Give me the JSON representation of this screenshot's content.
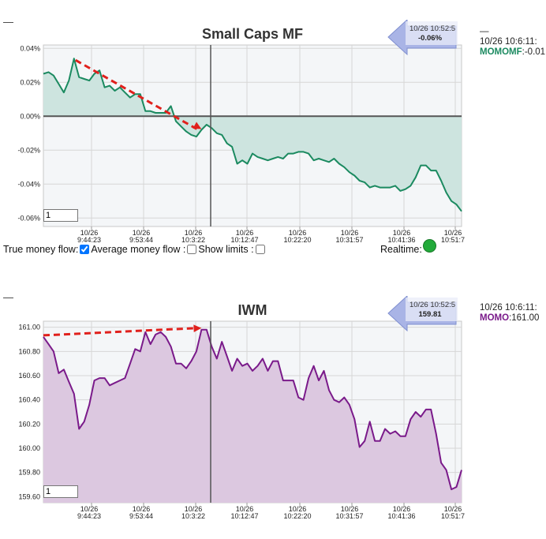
{
  "top_dash": "—",
  "bottom_dash": "—",
  "xtick_labels": [
    [
      "10/26",
      "9:44:23"
    ],
    [
      "10/26",
      "9:53:44"
    ],
    [
      "10/26",
      "10:3:22"
    ],
    [
      "10/26",
      "10:12:47"
    ],
    [
      "10/26",
      "10:22:20"
    ],
    [
      "10/26",
      "10:31:57"
    ],
    [
      "10/26",
      "10:41:36"
    ],
    [
      "10/26",
      "10:51:7"
    ]
  ],
  "controls": {
    "true_money_flow_label": "True money flow:",
    "true_money_flow_checked": true,
    "average_money_flow_label": "Average money flow :",
    "show_limits_label": "Show limits :",
    "realtime_label": "Realtime:",
    "realtime_color": "#22aa3a"
  },
  "colors": {
    "mf_line": "#1b8a60",
    "mf_fill": "#cde4df",
    "iwm_line": "#7a1a8a",
    "iwm_fill": "#dcc8e0",
    "annotation_arrow": "#e0201c",
    "tooltip_arrow": "#a9b4e6"
  },
  "chart_data": [
    {
      "type": "area",
      "title": "Small Caps MF",
      "unit": "%",
      "ylim": [
        -0.065,
        0.042
      ],
      "yticks": [
        0.04,
        0.02,
        0.0,
        -0.02,
        -0.04,
        -0.06
      ],
      "ytick_labels": [
        "0.04%",
        "0.02%",
        "0.00%",
        "-0.02%",
        "-0.04%",
        "-0.06%"
      ],
      "zero_line": true,
      "grid": true,
      "cursor_time": "10/26 10:3:22",
      "zoom_value": "1",
      "tooltip": {
        "time": "10/26 10:52:5",
        "value": "-0.06%"
      },
      "side_info": {
        "time": "10/26 10:6:11:",
        "label": "MOMOMF",
        "value": ":-0.01"
      },
      "series": [
        {
          "values": [
            0.025,
            0.026,
            0.024,
            0.019,
            0.014,
            0.021,
            0.034,
            0.023,
            0.022,
            0.021,
            0.025,
            0.027,
            0.017,
            0.018,
            0.015,
            0.017,
            0.014,
            0.011,
            0.013,
            0.013,
            0.003,
            0.003,
            0.002,
            0.002,
            0.002,
            0.006,
            -0.003,
            -0.006,
            -0.009,
            -0.011,
            -0.012,
            -0.008,
            -0.005,
            -0.007,
            -0.01,
            -0.011,
            -0.016,
            -0.018,
            -0.028,
            -0.026,
            -0.028,
            -0.022,
            -0.024,
            -0.025,
            -0.026,
            -0.025,
            -0.024,
            -0.025,
            -0.022,
            -0.022,
            -0.021,
            -0.021,
            -0.022,
            -0.026,
            -0.025,
            -0.026,
            -0.027,
            -0.025,
            -0.028,
            -0.03,
            -0.033,
            -0.035,
            -0.038,
            -0.039,
            -0.042,
            -0.041,
            -0.042,
            -0.042,
            -0.042,
            -0.041,
            -0.044,
            -0.043,
            -0.041,
            -0.036,
            -0.029,
            -0.029,
            -0.032,
            -0.032,
            -0.038,
            -0.045,
            -0.05,
            -0.052,
            -0.056
          ]
        }
      ],
      "annotation_arrow": {
        "from_index": 6,
        "to_index": 31,
        "style": "dashed-red"
      }
    },
    {
      "type": "area",
      "title": "IWM",
      "ylim": [
        159.55,
        161.05
      ],
      "yticks": [
        161.0,
        160.8,
        160.6,
        160.4,
        160.2,
        160.0,
        159.8,
        159.6
      ],
      "ytick_labels": [
        "161.00",
        "160.80",
        "160.60",
        "160.40",
        "160.20",
        "160.00",
        "159.80",
        "159.60"
      ],
      "grid": true,
      "cursor_time": "10/26 10:3:22",
      "zoom_value": "1",
      "tooltip": {
        "time": "10/26 10:52:5",
        "value": "159.81"
      },
      "side_info": {
        "time": "10/26 10:6:11:",
        "label": "MOMO",
        "value": ":161.00"
      },
      "series": [
        {
          "values": [
            160.92,
            160.86,
            160.8,
            160.62,
            160.65,
            160.55,
            160.45,
            160.16,
            160.22,
            160.36,
            160.56,
            160.58,
            160.58,
            160.52,
            160.54,
            160.56,
            160.58,
            160.7,
            160.82,
            160.8,
            160.96,
            160.86,
            160.94,
            160.96,
            160.92,
            160.84,
            160.7,
            160.7,
            160.66,
            160.72,
            160.8,
            160.98,
            160.98,
            160.84,
            160.74,
            160.88,
            160.76,
            160.64,
            160.74,
            160.68,
            160.7,
            160.64,
            160.68,
            160.74,
            160.64,
            160.72,
            160.72,
            160.56,
            160.56,
            160.56,
            160.42,
            160.4,
            160.58,
            160.68,
            160.56,
            160.64,
            160.48,
            160.4,
            160.38,
            160.42,
            160.36,
            160.24,
            160.01,
            160.06,
            160.22,
            160.06,
            160.06,
            160.16,
            160.12,
            160.14,
            160.1,
            160.1,
            160.24,
            160.3,
            160.26,
            160.32,
            160.32,
            160.12,
            159.88,
            159.82,
            159.66,
            159.68,
            159.82
          ]
        }
      ],
      "annotation_arrow": {
        "from_index": 0,
        "to_index": 31,
        "style": "dashed-red"
      }
    }
  ]
}
